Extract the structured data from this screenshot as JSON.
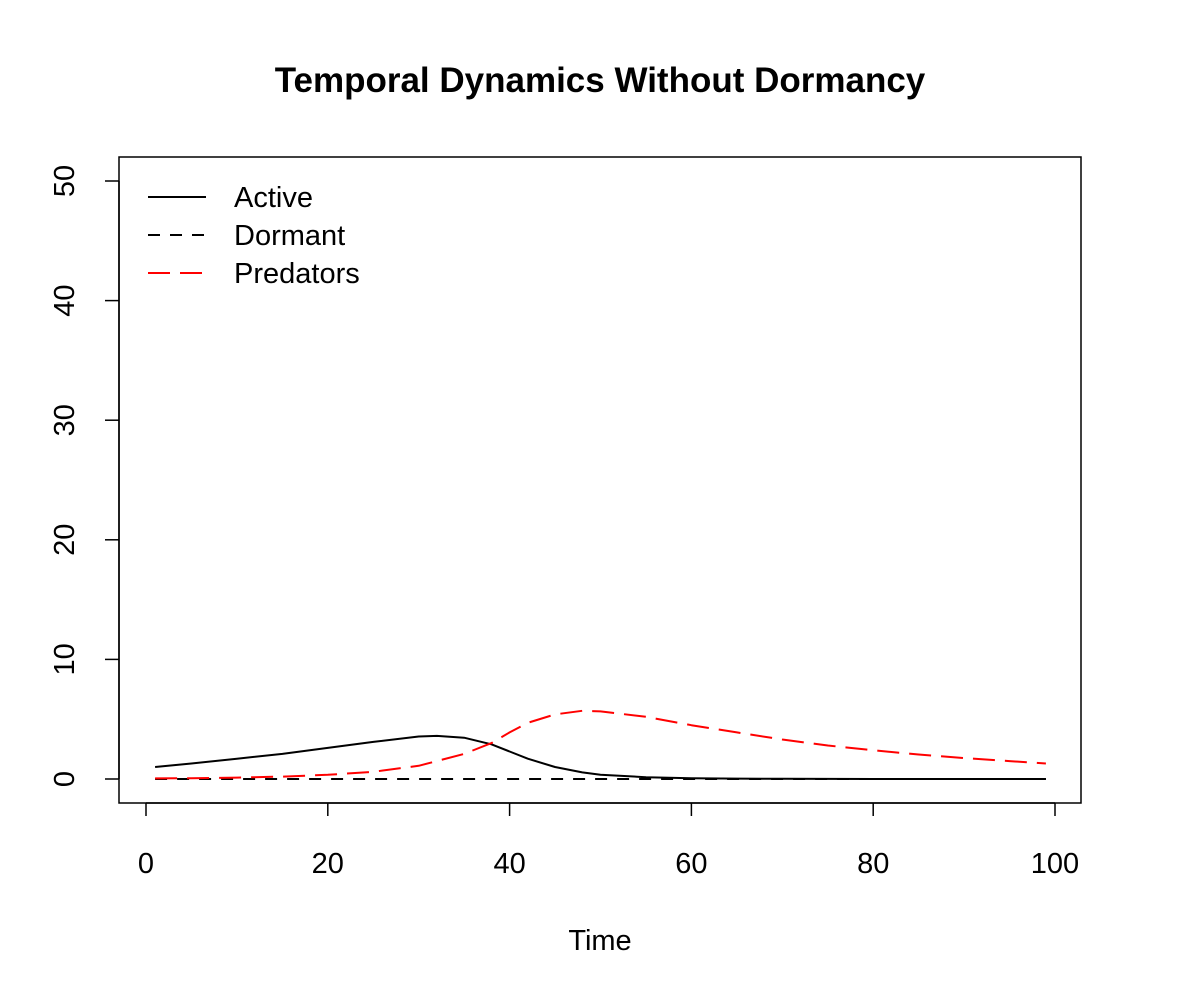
{
  "chart_data": {
    "type": "line",
    "title": "Temporal Dynamics Without Dormancy",
    "xlabel": "Time",
    "ylabel": "",
    "xlim": [
      1,
      99
    ],
    "ylim": [
      0,
      50
    ],
    "xticks": [
      0,
      20,
      40,
      60,
      80,
      100
    ],
    "yticks": [
      0,
      10,
      20,
      30,
      40,
      50
    ],
    "grid": false,
    "legend_position": "top-left",
    "series": [
      {
        "name": "Active",
        "color": "#000000",
        "line_style": "solid",
        "x": [
          1,
          5,
          10,
          15,
          20,
          25,
          30,
          32,
          35,
          38,
          40,
          42,
          45,
          48,
          50,
          55,
          60,
          65,
          70,
          80,
          90,
          99
        ],
        "y": [
          1.0,
          1.3,
          1.7,
          2.1,
          2.6,
          3.1,
          3.55,
          3.6,
          3.45,
          2.9,
          2.3,
          1.7,
          1.0,
          0.55,
          0.35,
          0.15,
          0.07,
          0.03,
          0.02,
          0.0,
          0.0,
          0.0
        ]
      },
      {
        "name": "Dormant",
        "color": "#000000",
        "line_style": "dashed",
        "x": [
          1,
          99
        ],
        "y": [
          0,
          0
        ]
      },
      {
        "name": "Predators",
        "color": "#ff0000",
        "line_style": "longdash",
        "x": [
          1,
          5,
          10,
          15,
          20,
          25,
          30,
          35,
          38,
          40,
          42,
          45,
          48,
          50,
          55,
          60,
          65,
          70,
          75,
          80,
          85,
          90,
          95,
          99
        ],
        "y": [
          0.05,
          0.07,
          0.12,
          0.2,
          0.35,
          0.6,
          1.1,
          2.1,
          3.0,
          3.9,
          4.7,
          5.4,
          5.7,
          5.65,
          5.2,
          4.5,
          3.9,
          3.3,
          2.8,
          2.4,
          2.05,
          1.75,
          1.5,
          1.3
        ]
      }
    ]
  }
}
